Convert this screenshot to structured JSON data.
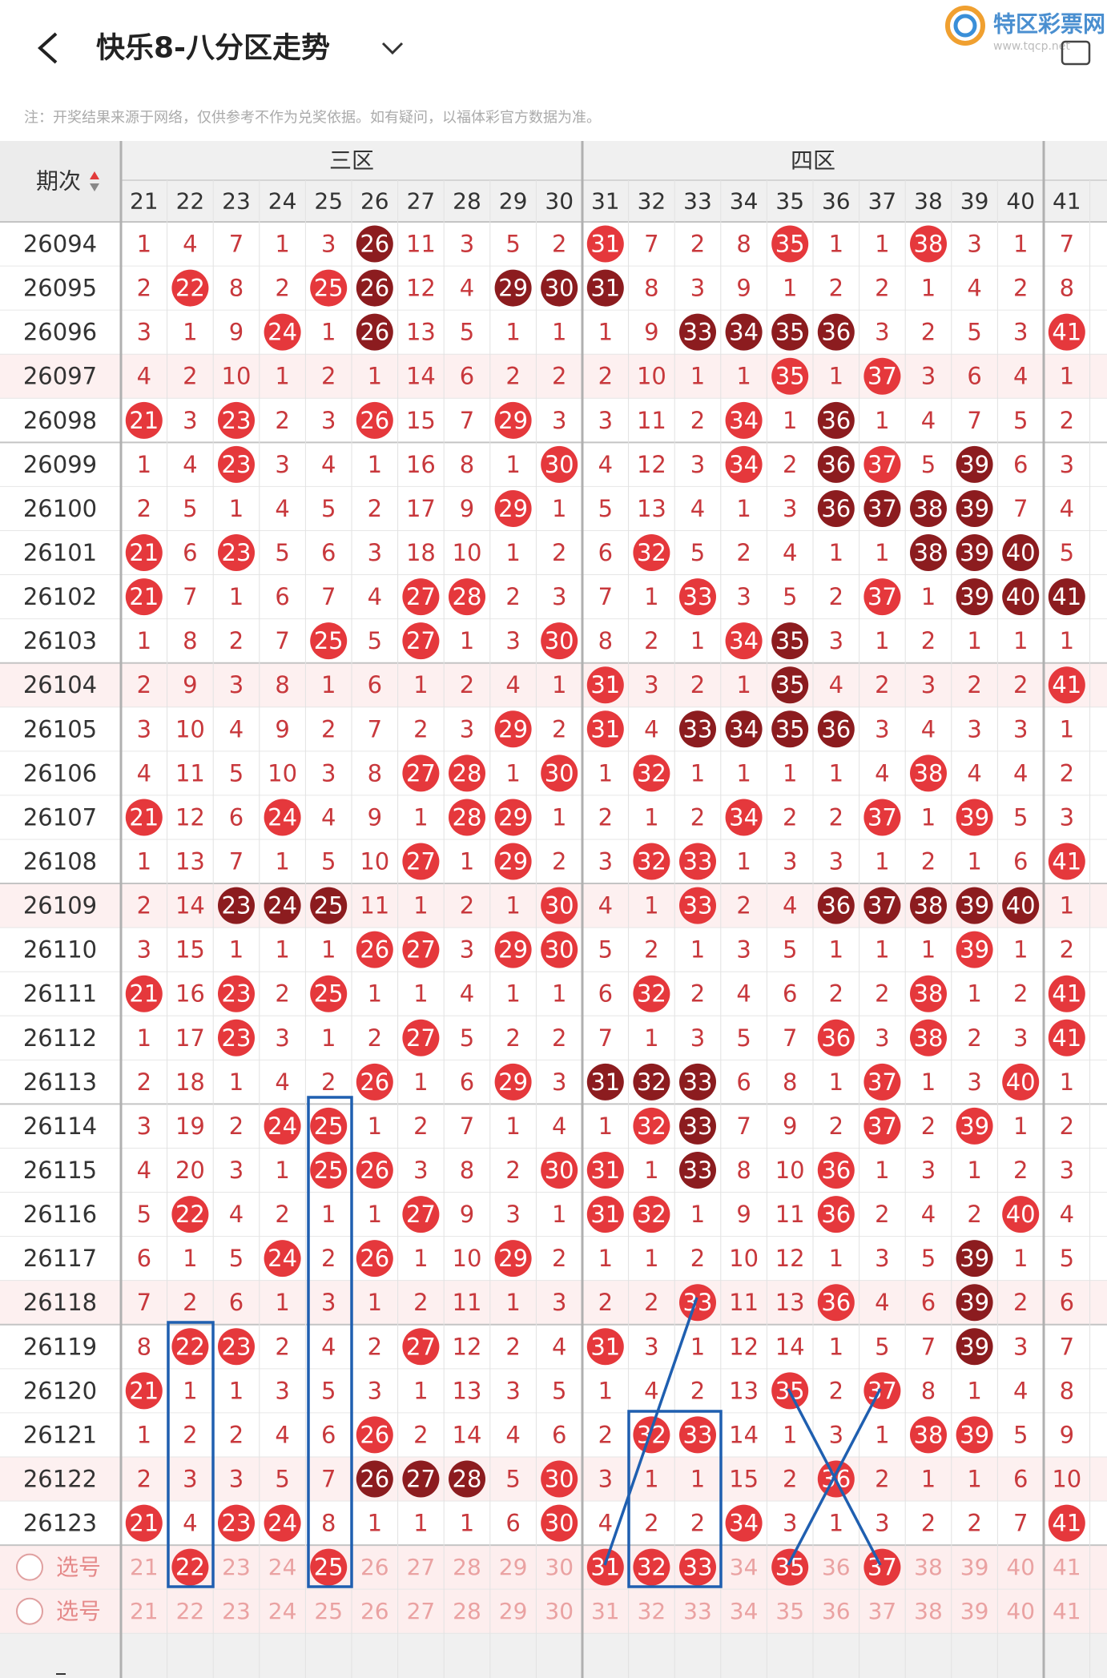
{
  "header": {
    "title": "快乐8-八分区走势",
    "note": "注：开奖结果来源于网络，仅供参考不作为兑奖依据。如有疑问，以福体彩官方数据为准。",
    "logo": "特区彩票网",
    "logo_url": "www.tqcp.net"
  },
  "table": {
    "period_label": "期次",
    "zones": [
      "三区",
      "四区"
    ],
    "columns": [
      21,
      22,
      23,
      24,
      25,
      26,
      27,
      28,
      29,
      30,
      31,
      32,
      33,
      34,
      35,
      36,
      37,
      38,
      39,
      40,
      41
    ],
    "rows": [
      {
        "period": "26094",
        "cells": [
          1,
          4,
          7,
          1,
          3,
          26,
          11,
          3,
          5,
          2,
          31,
          7,
          2,
          8,
          35,
          1,
          1,
          38,
          3,
          1,
          7
        ],
        "dark": [
          5
        ]
      },
      {
        "period": "26095",
        "cells": [
          2,
          22,
          8,
          2,
          25,
          26,
          12,
          4,
          29,
          30,
          31,
          8,
          3,
          9,
          1,
          2,
          2,
          1,
          4,
          2,
          8
        ],
        "dark": [
          5,
          8,
          9,
          10
        ]
      },
      {
        "period": "26096",
        "cells": [
          3,
          1,
          9,
          24,
          1,
          26,
          13,
          5,
          1,
          1,
          1,
          9,
          33,
          34,
          35,
          36,
          3,
          2,
          5,
          3,
          41
        ],
        "dark": [
          5,
          12,
          13,
          14,
          15
        ]
      },
      {
        "period": "26097",
        "cells": [
          4,
          2,
          10,
          1,
          2,
          1,
          14,
          6,
          2,
          2,
          2,
          10,
          1,
          1,
          35,
          1,
          37,
          3,
          6,
          4,
          1
        ],
        "dark": []
      },
      {
        "period": "26098",
        "cells": [
          21,
          3,
          23,
          2,
          3,
          26,
          15,
          7,
          29,
          3,
          3,
          11,
          2,
          34,
          1,
          36,
          1,
          4,
          7,
          5,
          2
        ],
        "dark": [
          15
        ]
      },
      {
        "period": "26099",
        "cells": [
          1,
          4,
          23,
          3,
          4,
          1,
          16,
          8,
          1,
          30,
          4,
          12,
          3,
          34,
          2,
          36,
          37,
          5,
          39,
          6,
          3
        ],
        "dark": [
          15,
          18
        ]
      },
      {
        "period": "26100",
        "cells": [
          2,
          5,
          1,
          4,
          5,
          2,
          17,
          9,
          29,
          1,
          5,
          13,
          4,
          1,
          3,
          36,
          37,
          38,
          39,
          7,
          4
        ],
        "dark": [
          15,
          16,
          17,
          18
        ]
      },
      {
        "period": "26101",
        "cells": [
          21,
          6,
          23,
          5,
          6,
          3,
          18,
          10,
          1,
          2,
          6,
          32,
          5,
          2,
          4,
          1,
          1,
          38,
          39,
          40,
          5
        ],
        "dark": [
          17,
          18,
          19
        ]
      },
      {
        "period": "26102",
        "cells": [
          21,
          7,
          1,
          6,
          7,
          4,
          27,
          28,
          2,
          3,
          7,
          1,
          33,
          3,
          5,
          2,
          37,
          1,
          39,
          40,
          41
        ],
        "dark": [
          18,
          19,
          20
        ]
      },
      {
        "period": "26103",
        "cells": [
          1,
          8,
          2,
          7,
          25,
          5,
          27,
          1,
          3,
          30,
          8,
          2,
          1,
          34,
          35,
          3,
          1,
          2,
          1,
          1,
          1
        ],
        "dark": [
          14
        ]
      },
      {
        "period": "26104",
        "cells": [
          2,
          9,
          3,
          8,
          1,
          6,
          1,
          2,
          4,
          1,
          31,
          3,
          2,
          1,
          35,
          4,
          2,
          3,
          2,
          2,
          41
        ],
        "dark": [
          14
        ]
      },
      {
        "period": "26105",
        "cells": [
          3,
          10,
          4,
          9,
          2,
          7,
          2,
          3,
          29,
          2,
          31,
          4,
          33,
          34,
          35,
          36,
          3,
          4,
          3,
          3,
          1
        ],
        "dark": [
          12,
          13,
          14,
          15
        ]
      },
      {
        "period": "26106",
        "cells": [
          4,
          11,
          5,
          10,
          3,
          8,
          27,
          28,
          1,
          30,
          1,
          32,
          1,
          1,
          1,
          1,
          4,
          38,
          4,
          4,
          2
        ],
        "dark": []
      },
      {
        "period": "26107",
        "cells": [
          21,
          12,
          6,
          24,
          4,
          9,
          1,
          28,
          29,
          1,
          2,
          1,
          2,
          34,
          2,
          2,
          37,
          1,
          39,
          5,
          3
        ],
        "dark": []
      },
      {
        "period": "26108",
        "cells": [
          1,
          13,
          7,
          1,
          5,
          10,
          27,
          1,
          29,
          2,
          3,
          32,
          33,
          1,
          3,
          3,
          1,
          2,
          1,
          6,
          41
        ],
        "dark": []
      },
      {
        "period": "26109",
        "cells": [
          2,
          14,
          23,
          24,
          25,
          11,
          1,
          2,
          1,
          30,
          4,
          1,
          33,
          2,
          4,
          36,
          37,
          38,
          39,
          40,
          1
        ],
        "dark": [
          2,
          3,
          4,
          15,
          16,
          17,
          18,
          19
        ]
      },
      {
        "period": "26110",
        "cells": [
          3,
          15,
          1,
          1,
          1,
          26,
          27,
          3,
          29,
          30,
          5,
          2,
          1,
          3,
          5,
          1,
          1,
          1,
          39,
          1,
          2
        ],
        "dark": []
      },
      {
        "period": "26111",
        "cells": [
          21,
          16,
          23,
          2,
          25,
          1,
          1,
          4,
          1,
          1,
          6,
          32,
          2,
          4,
          6,
          2,
          2,
          38,
          1,
          2,
          41
        ],
        "dark": []
      },
      {
        "period": "26112",
        "cells": [
          1,
          17,
          23,
          3,
          1,
          2,
          27,
          5,
          2,
          2,
          7,
          1,
          3,
          5,
          7,
          36,
          3,
          38,
          2,
          3,
          41
        ],
        "dark": []
      },
      {
        "period": "26113",
        "cells": [
          2,
          18,
          1,
          4,
          2,
          26,
          1,
          6,
          29,
          3,
          31,
          32,
          33,
          6,
          8,
          1,
          37,
          1,
          3,
          40,
          1
        ],
        "dark": [
          10,
          11,
          12
        ]
      },
      {
        "period": "26114",
        "cells": [
          3,
          19,
          2,
          24,
          25,
          1,
          2,
          7,
          1,
          4,
          1,
          32,
          33,
          7,
          9,
          2,
          37,
          2,
          39,
          1,
          2
        ],
        "dark": [
          12
        ]
      },
      {
        "period": "26115",
        "cells": [
          4,
          20,
          3,
          1,
          25,
          26,
          3,
          8,
          2,
          30,
          31,
          1,
          33,
          8,
          10,
          36,
          1,
          3,
          1,
          2,
          3
        ],
        "dark": [
          12
        ]
      },
      {
        "period": "26116",
        "cells": [
          5,
          22,
          4,
          2,
          1,
          1,
          27,
          9,
          3,
          1,
          31,
          32,
          1,
          9,
          11,
          36,
          2,
          4,
          2,
          40,
          4
        ],
        "dark": []
      },
      {
        "period": "26117",
        "cells": [
          6,
          1,
          5,
          24,
          2,
          26,
          1,
          10,
          29,
          2,
          1,
          1,
          2,
          10,
          12,
          1,
          3,
          5,
          39,
          1,
          5
        ],
        "dark": [
          18
        ]
      },
      {
        "period": "26118",
        "cells": [
          7,
          2,
          6,
          1,
          3,
          1,
          2,
          11,
          1,
          3,
          2,
          2,
          33,
          11,
          13,
          36,
          4,
          6,
          39,
          2,
          6
        ],
        "dark": [
          18
        ]
      },
      {
        "period": "26119",
        "cells": [
          8,
          22,
          23,
          2,
          4,
          2,
          27,
          12,
          2,
          4,
          31,
          3,
          1,
          12,
          14,
          1,
          5,
          7,
          39,
          3,
          7
        ],
        "dark": [
          18
        ]
      },
      {
        "period": "26120",
        "cells": [
          21,
          1,
          1,
          3,
          5,
          3,
          1,
          13,
          3,
          5,
          1,
          4,
          2,
          13,
          35,
          2,
          37,
          8,
          1,
          4,
          8
        ],
        "dark": []
      },
      {
        "period": "26121",
        "cells": [
          1,
          2,
          2,
          4,
          6,
          26,
          2,
          14,
          4,
          6,
          2,
          32,
          33,
          14,
          1,
          3,
          1,
          38,
          39,
          5,
          9
        ],
        "dark": []
      },
      {
        "period": "26122",
        "cells": [
          2,
          3,
          3,
          5,
          7,
          26,
          27,
          28,
          5,
          30,
          3,
          1,
          1,
          15,
          2,
          36,
          2,
          1,
          1,
          6,
          10
        ],
        "dark": [
          5,
          6,
          7
        ]
      },
      {
        "period": "26123",
        "cells": [
          21,
          4,
          23,
          24,
          8,
          1,
          1,
          1,
          6,
          30,
          4,
          2,
          2,
          34,
          3,
          1,
          3,
          2,
          2,
          7,
          41
        ],
        "dark": []
      }
    ],
    "pick_label": "选号",
    "picks": [
      {
        "selected": [
          1,
          4,
          10,
          11,
          12,
          14,
          16
        ]
      },
      {
        "selected": []
      }
    ]
  }
}
